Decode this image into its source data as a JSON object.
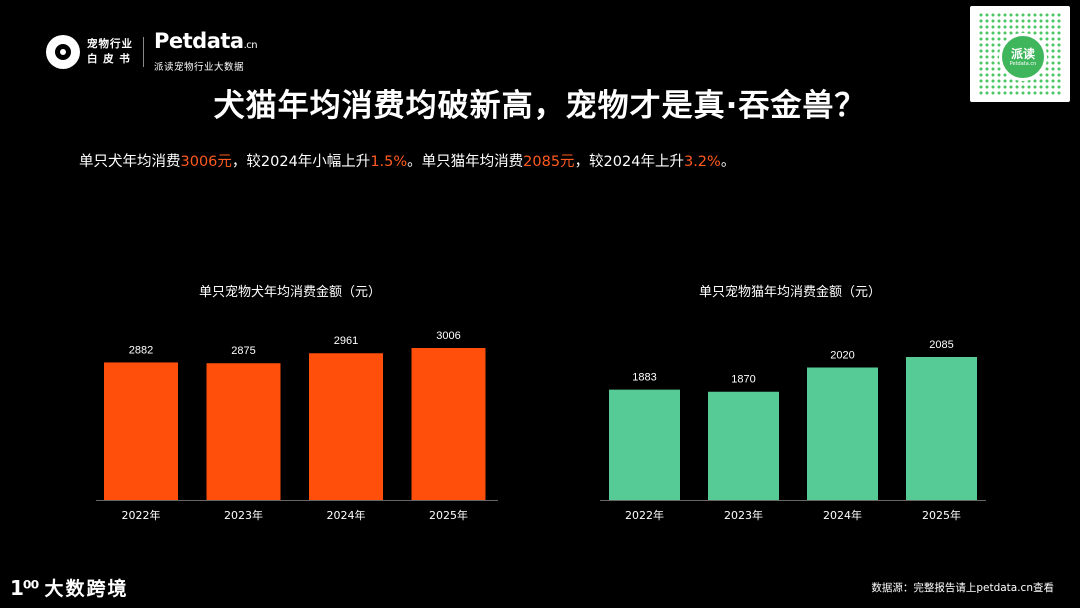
{
  "header": {
    "logo_line1": "宠物行业",
    "logo_line2": "白 皮 书",
    "brand_main": "Petdata",
    "brand_suffix": ".cn",
    "brand_sub": "派读宠物行业大数据",
    "qr_label": "派读",
    "qr_sub": "Petdata.cn"
  },
  "title": "犬猫年均消费均破新高，宠物才是真·吞金兽？",
  "summary": {
    "p1": "单只犬年均消费",
    "v1": "3006元",
    "p2": "，较2024年小幅上升",
    "v2": "1.5%",
    "p3": "。单只猫年均消费",
    "v3": "2085元",
    "p4": "，较2024年上升",
    "v4": "3.2%",
    "p5": "。"
  },
  "chart_data": [
    {
      "type": "bar",
      "title": "单只宠物犬年均消费金额（元）",
      "categories": [
        "2022年",
        "2023年",
        "2024年",
        "2025年"
      ],
      "values": [
        2882,
        2875,
        2961,
        3006
      ],
      "color": "#ff4f0a"
    },
    {
      "type": "bar",
      "title": "单只宠物猫年均消费金额（元）",
      "categories": [
        "2022年",
        "2023年",
        "2024年",
        "2025年"
      ],
      "values": [
        1883,
        1870,
        2020,
        2085
      ],
      "color": "#57cb95"
    }
  ],
  "footer": {
    "mark": "1⁰⁰",
    "name": "大数跨境",
    "source": "数据源：完整报告请上petdata.cn查看"
  }
}
